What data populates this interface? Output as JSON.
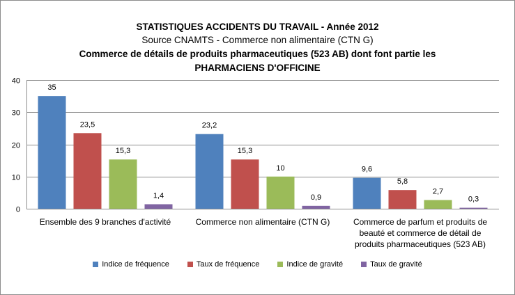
{
  "chart_data": {
    "type": "bar",
    "title_lines": [
      "STATISTIQUES ACCIDENTS DU TRAVAIL - Année 2012",
      "Source CNAMTS - Commerce non alimentaire (CTN G)",
      "Commerce de détails de produits pharmaceutiques (523 AB) dont font partie les",
      "PHARMACIENS D'OFFICINE"
    ],
    "categories": [
      "Ensemble des 9 branches d'activité",
      "Commerce non alimentaire (CTN G)",
      "Commerce de parfum et produits de beauté et commerce de détail de produits pharmaceutiques (523 AB)"
    ],
    "category_lines": [
      [
        "Ensemble des 9 branches d'activité"
      ],
      [
        "Commerce non alimentaire (CTN G)"
      ],
      [
        "Commerce de parfum et produits de",
        "beauté et commerce de détail de",
        "produits pharmaceutiques (523 AB)"
      ]
    ],
    "series": [
      {
        "name": "Indice de fréquence",
        "color": "#4f81bd",
        "values": [
          35,
          23.2,
          9.6
        ],
        "labels": [
          "35",
          "23,2",
          "9,6"
        ]
      },
      {
        "name": "Taux de fréquence",
        "color": "#c0504d",
        "values": [
          23.5,
          15.3,
          5.8
        ],
        "labels": [
          "23,5",
          "15,3",
          "5,8"
        ]
      },
      {
        "name": "Indice de gravité",
        "color": "#9bbb59",
        "values": [
          15.3,
          10,
          2.7
        ],
        "labels": [
          "15,3",
          "10",
          "2,7"
        ]
      },
      {
        "name": "Taux de gravité",
        "color": "#8064a2",
        "values": [
          1.4,
          0.9,
          0.3
        ],
        "labels": [
          "1,4",
          "0,9",
          "0,3"
        ]
      }
    ],
    "ylim": [
      0,
      40
    ],
    "yticks": [
      0,
      10,
      20,
      30,
      40
    ],
    "grid": true,
    "legend_position": "bottom"
  }
}
